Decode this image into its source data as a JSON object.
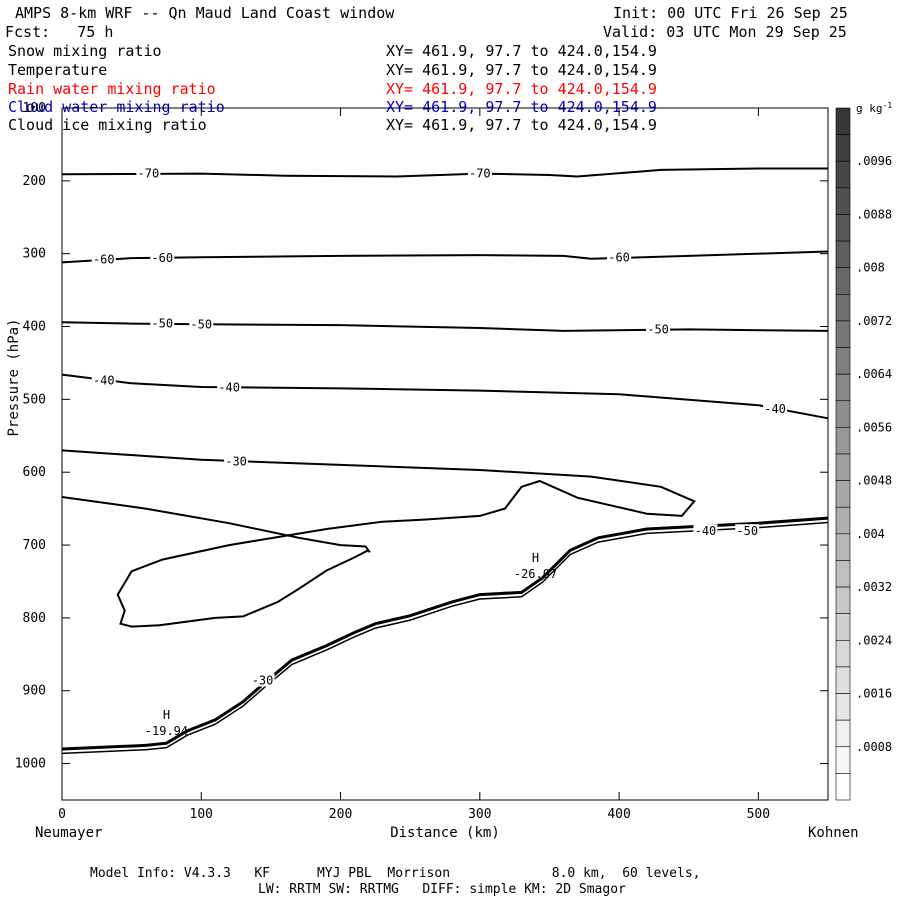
{
  "header": {
    "title": "AMPS 8-km WRF -- Qn Maud Land Coast window",
    "init": "Init: 00 UTC Fri 26 Sep 25",
    "fcst": "Fcst:   75 h",
    "valid": "Valid: 03 UTC Mon 29 Sep 25"
  },
  "fields": [
    {
      "name": "Snow mixing ratio",
      "xy": "XY= 461.9, 97.7 to 424.0,154.9",
      "color": "#000000"
    },
    {
      "name": "Temperature",
      "xy": "XY= 461.9, 97.7 to 424.0,154.9",
      "color": "#000000"
    },
    {
      "name": "Rain water mixing ratio",
      "xy": "XY= 461.9, 97.7 to 424.0,154.9",
      "color": "#ff0000"
    },
    {
      "name": "Cloud water mixing ratio",
      "xy": "XY= 461.9, 97.7 to 424.0,154.9",
      "color": "#0000cc"
    },
    {
      "name": "Cloud ice mixing ratio",
      "xy": "XY= 461.9, 97.7 to 424.0,154.9",
      "color": "#000000"
    }
  ],
  "footer": {
    "line1": "Model Info: V4.3.3   KF      MYJ PBL  Morrison             8.0 km,  60 levels,",
    "line2": "LW: RRTM SW: RRTMG   DIFF: simple KM: 2D Smagor"
  },
  "chart_data": {
    "type": "contour",
    "xlabel": "Distance (km)",
    "ylabel": "Pressure (hPa)",
    "xlim": [
      0,
      550
    ],
    "ylim": [
      1050,
      100
    ],
    "x_ticks": [
      0,
      100,
      200,
      300,
      400,
      500
    ],
    "y_ticks": [
      100,
      200,
      300,
      400,
      500,
      600,
      700,
      800,
      900,
      1000
    ],
    "left_endpoint": "Neumayer",
    "right_endpoint": "Kohnen",
    "colorbar": {
      "unit": "g kg",
      "unit_sup": "-1",
      "ticks": [
        ".0096",
        ".0088",
        ".008",
        ".0072",
        ".0064",
        ".0056",
        ".0048",
        ".004",
        ".0032",
        ".0024",
        ".0016",
        ".0008"
      ]
    },
    "temperature_contours": [
      {
        "label": "-70",
        "points": [
          [
            0,
            191
          ],
          [
            100,
            190
          ],
          [
            160,
            193
          ],
          [
            240,
            194
          ],
          [
            300,
            190
          ],
          [
            350,
            192
          ],
          [
            370,
            194
          ],
          [
            430,
            185
          ],
          [
            500,
            183
          ],
          [
            550,
            183
          ]
        ]
      },
      {
        "label": "-60",
        "points": [
          [
            0,
            312
          ],
          [
            50,
            306
          ],
          [
            100,
            305
          ],
          [
            200,
            303
          ],
          [
            300,
            302
          ],
          [
            360,
            303
          ],
          [
            380,
            307
          ],
          [
            450,
            303
          ],
          [
            550,
            297
          ]
        ]
      },
      {
        "label": "-50",
        "points": [
          [
            0,
            394
          ],
          [
            50,
            396
          ],
          [
            100,
            397
          ],
          [
            200,
            398
          ],
          [
            300,
            402
          ],
          [
            360,
            406
          ],
          [
            450,
            404
          ],
          [
            550,
            406
          ]
        ]
      },
      {
        "label": "-40",
        "points": [
          [
            0,
            466
          ],
          [
            50,
            478
          ],
          [
            100,
            483
          ],
          [
            200,
            485
          ],
          [
            300,
            488
          ],
          [
            400,
            493
          ],
          [
            500,
            508
          ],
          [
            550,
            526
          ]
        ]
      },
      {
        "label": "-30",
        "points": [
          [
            0,
            570
          ],
          [
            100,
            583
          ],
          [
            200,
            590
          ],
          [
            300,
            597
          ],
          [
            380,
            606
          ],
          [
            430,
            620
          ],
          [
            454,
            640
          ],
          [
            445,
            660
          ],
          [
            420,
            657
          ],
          [
            370,
            635
          ],
          [
            343,
            612
          ],
          [
            330,
            620
          ],
          [
            318,
            650
          ],
          [
            300,
            660
          ],
          [
            260,
            665
          ],
          [
            230,
            668
          ],
          [
            190,
            678
          ],
          [
            120,
            700
          ],
          [
            72,
            720
          ],
          [
            50,
            736
          ],
          [
            40,
            768
          ],
          [
            45,
            790
          ],
          [
            42,
            808
          ],
          [
            50,
            812
          ],
          [
            70,
            810
          ],
          [
            110,
            800
          ],
          [
            130,
            798
          ],
          [
            155,
            778
          ],
          [
            170,
            760
          ],
          [
            190,
            735
          ],
          [
            210,
            717
          ],
          [
            220,
            707
          ]
        ]
      },
      {
        "label": "-30",
        "points": [
          [
            0,
            634
          ],
          [
            60,
            650
          ],
          [
            120,
            670
          ],
          [
            170,
            690
          ],
          [
            200,
            700
          ],
          [
            218,
            702
          ],
          [
            221,
            710
          ]
        ]
      }
    ],
    "contour_labels": [
      {
        "text": "-70",
        "x": 62,
        "p": 190
      },
      {
        "text": "-70",
        "x": 300,
        "p": 190
      },
      {
        "text": "-60",
        "x": 30,
        "p": 308
      },
      {
        "text": "-60",
        "x": 72,
        "p": 306
      },
      {
        "text": "-60",
        "x": 400,
        "p": 305
      },
      {
        "text": "-50",
        "x": 72,
        "p": 396
      },
      {
        "text": "-50",
        "x": 100,
        "p": 397
      },
      {
        "text": "-50",
        "x": 428,
        "p": 404
      },
      {
        "text": "-40",
        "x": 30,
        "p": 474
      },
      {
        "text": "-40",
        "x": 120,
        "p": 484
      },
      {
        "text": "-40",
        "x": 512,
        "p": 513
      },
      {
        "text": "-30",
        "x": 125,
        "p": 585
      },
      {
        "text": "-30",
        "x": 144,
        "p": 886
      },
      {
        "text": "-40",
        "x": 462,
        "p": 681
      },
      {
        "text": "-50",
        "x": 492,
        "p": 681
      }
    ],
    "extrema": [
      {
        "type": "H",
        "value": "-19.94",
        "x": 75,
        "p": 955
      },
      {
        "type": "H",
        "value": "-26.07",
        "x": 340,
        "p": 740
      }
    ],
    "terrain": [
      [
        0,
        980
      ],
      [
        60,
        975
      ],
      [
        75,
        972
      ],
      [
        90,
        955
      ],
      [
        110,
        940
      ],
      [
        130,
        915
      ],
      [
        145,
        890
      ],
      [
        165,
        858
      ],
      [
        190,
        838
      ],
      [
        210,
        820
      ],
      [
        225,
        808
      ],
      [
        250,
        797
      ],
      [
        280,
        778
      ],
      [
        300,
        768
      ],
      [
        330,
        765
      ],
      [
        345,
        745
      ],
      [
        365,
        707
      ],
      [
        385,
        690
      ],
      [
        420,
        678
      ],
      [
        500,
        670
      ],
      [
        550,
        663
      ]
    ]
  }
}
